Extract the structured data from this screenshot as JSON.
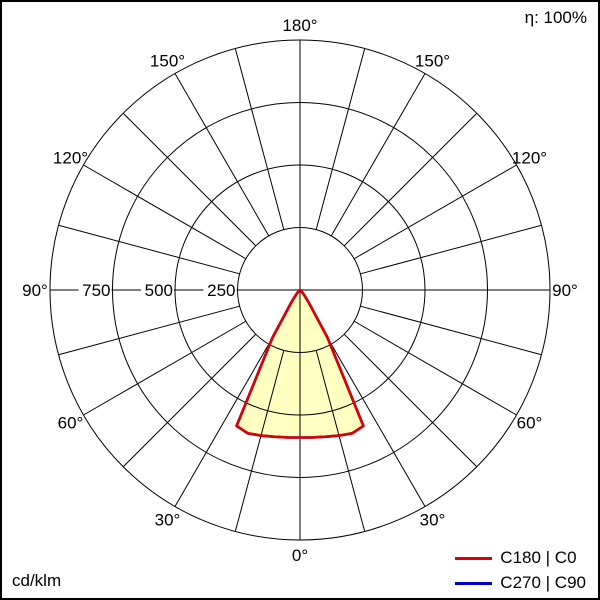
{
  "header": {
    "eta": "η: 100%"
  },
  "footer": {
    "unit": "cd/klm"
  },
  "legend": {
    "items": [
      {
        "label": "C180 | C0",
        "color": "#dc0000"
      },
      {
        "label": "C270 | C90",
        "color": "#0000c8"
      }
    ]
  },
  "chart_data": {
    "type": "line",
    "coordinate_system": "polar",
    "note": "Polar luminous intensity distribution; gamma 0° at bottom (nadir), values in cd/klm",
    "unit": "cd/klm",
    "efficiency": "η: 100%",
    "r_max": 1000,
    "radial_ticks": [
      250,
      500,
      750,
      1000
    ],
    "radial_tick_labels": [
      "250",
      "500",
      "750"
    ],
    "angle_step_deg": 15,
    "angle_labels_deg": [
      0,
      30,
      60,
      90,
      120,
      150,
      180
    ],
    "inner_grid_radius": 250,
    "fill_color": "#ffffc2",
    "series": [
      {
        "name": "C180 | C0",
        "color": "#dc0000",
        "gamma_deg": [
          0,
          5,
          10,
          15,
          20,
          25,
          30,
          35,
          40,
          45,
          50,
          55,
          60,
          65,
          70,
          75,
          80,
          85,
          90
        ],
        "values": [
          590,
          592,
          596,
          603,
          610,
          600,
          220,
          60,
          25,
          12,
          8,
          5,
          3,
          2,
          1,
          0,
          0,
          0,
          0
        ]
      },
      {
        "name": "C270 | C90",
        "color": "#0000c8",
        "gamma_deg": [
          0,
          5,
          10,
          15,
          20,
          25,
          30,
          35,
          40,
          45,
          50,
          55,
          60,
          65,
          70,
          75,
          80,
          85,
          90
        ],
        "values": [
          590,
          592,
          596,
          603,
          610,
          600,
          220,
          60,
          25,
          12,
          8,
          5,
          3,
          2,
          1,
          0,
          0,
          0,
          0
        ]
      }
    ]
  }
}
